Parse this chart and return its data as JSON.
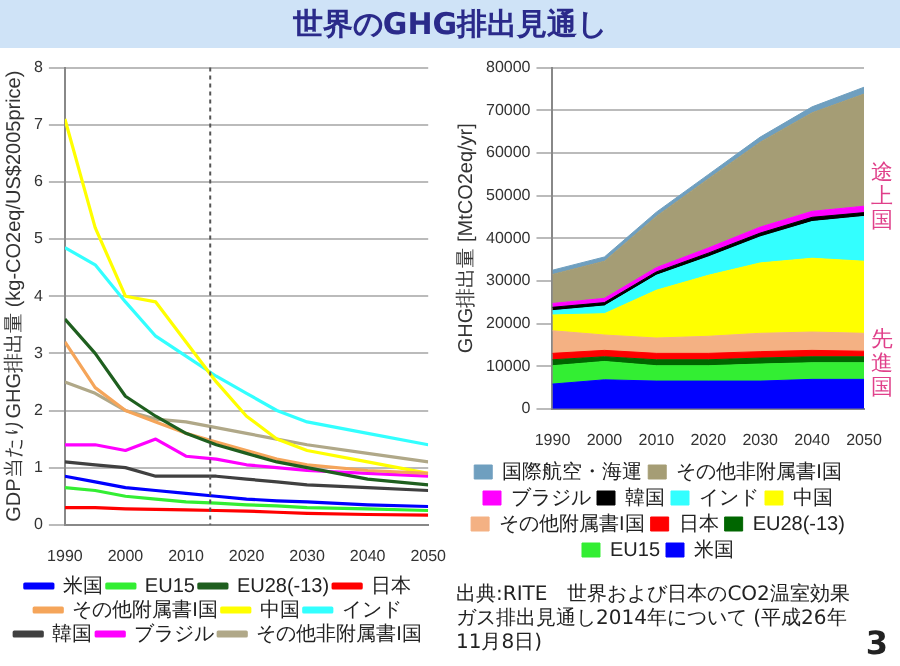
{
  "chart_data": [
    {
      "type": "area",
      "title": "世界のGHG排出見通し",
      "ylabel": "GHG排出量 [MtCO2eq/yr]",
      "stacked": true,
      "categories": [
        "1990",
        "2000",
        "2010",
        "2020",
        "2030",
        "2040",
        "2050"
      ],
      "series": [
        {
          "name": "米国",
          "color": "#0000ff",
          "values": [
            5800,
            6800,
            6500,
            6500,
            6500,
            6900,
            6900
          ]
        },
        {
          "name": "EU15",
          "color": "#33ee33",
          "values": [
            4300,
            4300,
            3600,
            3600,
            4000,
            3900,
            3900
          ]
        },
        {
          "name": "EU28(-13)",
          "color": "#006600",
          "values": [
            1400,
            1100,
            1400,
            1400,
            1400,
            1400,
            1400
          ]
        },
        {
          "name": "日本",
          "color": "#ff0000",
          "values": [
            1500,
            1500,
            1500,
            1500,
            1500,
            1500,
            1300
          ]
        },
        {
          "name": "その他附属書I国",
          "color": "#f4b183",
          "values": [
            5300,
            3600,
            3600,
            4000,
            4300,
            4300,
            4200
          ]
        },
        {
          "name": "中国",
          "color": "#ffff00",
          "values": [
            3700,
            5000,
            11200,
            14300,
            16500,
            17300,
            16900
          ]
        },
        {
          "name": "インド",
          "color": "#33ffff",
          "values": [
            1000,
            1800,
            3500,
            4300,
            6100,
            8600,
            10500
          ]
        },
        {
          "name": "韓国",
          "color": "#000000",
          "values": [
            800,
            800,
            800,
            900,
            900,
            1000,
            900
          ]
        },
        {
          "name": "ブラジル",
          "color": "#ff00ff",
          "values": [
            900,
            1000,
            1000,
            1200,
            1400,
            1400,
            1500
          ]
        },
        {
          "name": "その他非附属書I国",
          "color": "#a59d75",
          "values": [
            6800,
            8700,
            12000,
            16200,
            19900,
            23100,
            26300
          ]
        },
        {
          "name": "国際航空・海運",
          "color": "#6f9fbf",
          "values": [
            1000,
            1000,
            1000,
            1000,
            1200,
            1400,
            1600
          ]
        }
      ],
      "ylim": [
        0,
        80000
      ],
      "yticks": [
        0,
        10000,
        20000,
        30000,
        40000,
        50000,
        60000,
        70000,
        80000
      ],
      "grid": "y",
      "legend": "bottom",
      "marker": "none",
      "annotations": [
        "途上国",
        "先進国",
        "出典:RITE　世界および日本のCO2温室効果ガス排出見通し2014年について (平成26年11月8日)",
        "3"
      ]
    },
    {
      "type": "line",
      "ylabel": "GDP当たりGHG排出量 (kg-CO2eq/US$2005price)",
      "x": [
        1990,
        1995,
        2000,
        2005,
        2010,
        2015,
        2020,
        2025,
        2030,
        2040,
        2050
      ],
      "series": [
        {
          "name": "米国",
          "color": "#0000ff",
          "values": [
            0.85,
            0.75,
            0.65,
            0.6,
            0.55,
            0.5,
            0.45,
            0.42,
            0.4,
            0.35,
            0.32
          ]
        },
        {
          "name": "EU15",
          "color": "#33ee33",
          "values": [
            0.65,
            0.6,
            0.5,
            0.45,
            0.4,
            0.38,
            0.35,
            0.33,
            0.3,
            0.28,
            0.25
          ]
        },
        {
          "name": "EU28(-13)",
          "color": "#1f5f1f",
          "values": [
            3.6,
            3.0,
            2.25,
            1.9,
            1.6,
            1.4,
            1.25,
            1.1,
            1.0,
            0.8,
            0.7
          ]
        },
        {
          "name": "日本",
          "color": "#ff0000",
          "values": [
            0.3,
            0.3,
            0.28,
            0.27,
            0.26,
            0.25,
            0.24,
            0.22,
            0.2,
            0.18,
            0.17
          ]
        },
        {
          "name": "その他附属書I国",
          "color": "#f5a55a",
          "values": [
            3.2,
            2.4,
            2.0,
            1.8,
            1.6,
            1.45,
            1.3,
            1.15,
            1.05,
            0.95,
            0.9
          ]
        },
        {
          "name": "中国",
          "color": "#ffff00",
          "values": [
            7.1,
            5.2,
            4.0,
            3.9,
            3.2,
            2.5,
            1.9,
            1.5,
            1.3,
            1.1,
            0.9
          ]
        },
        {
          "name": "インド",
          "color": "#33ffff",
          "values": [
            4.85,
            4.55,
            3.9,
            3.3,
            2.95,
            2.6,
            2.3,
            2.0,
            1.8,
            1.6,
            1.4
          ]
        },
        {
          "name": "韓国",
          "color": "#404040",
          "values": [
            1.1,
            1.05,
            1.0,
            0.85,
            0.85,
            0.85,
            0.8,
            0.75,
            0.7,
            0.65,
            0.6
          ]
        },
        {
          "name": "ブラジル",
          "color": "#ff00ff",
          "values": [
            1.4,
            1.4,
            1.3,
            1.5,
            1.2,
            1.15,
            1.05,
            1.0,
            0.95,
            0.9,
            0.85
          ]
        },
        {
          "name": "その他非附属書I国",
          "color": "#b0a888",
          "values": [
            2.5,
            2.3,
            2.0,
            1.85,
            1.8,
            1.7,
            1.6,
            1.5,
            1.4,
            1.25,
            1.1
          ]
        }
      ],
      "xlim": [
        1990,
        2050
      ],
      "xticks": [
        1990,
        2000,
        2010,
        2020,
        2030,
        2040,
        2050
      ],
      "ylim": [
        0,
        8
      ],
      "yticks": [
        0,
        1,
        2,
        3,
        4,
        5,
        6,
        7,
        8
      ],
      "grid": "y",
      "legend": "bottom",
      "marker": "none",
      "line_style": "solid",
      "ref_lines": [
        {
          "axis": "x",
          "value": 2014,
          "color": "#555555",
          "line_style": "dotted"
        }
      ]
    }
  ]
}
